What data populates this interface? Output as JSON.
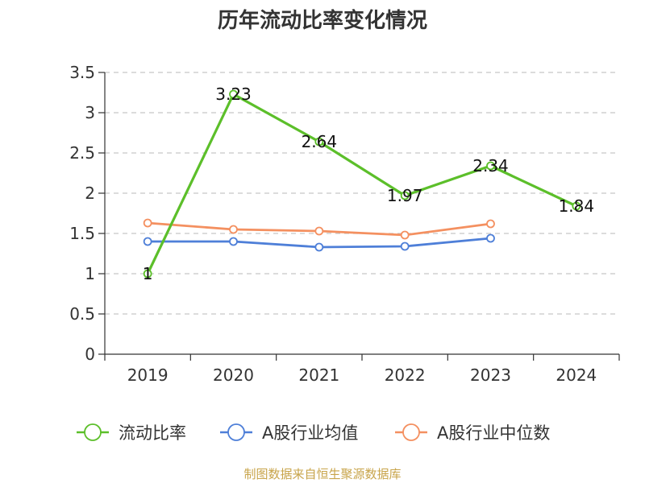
{
  "chart_data": {
    "type": "line",
    "title": "历年流动比率变化情况",
    "categories": [
      "2019",
      "2020",
      "2021",
      "2022",
      "2023",
      "2024"
    ],
    "ylim": [
      0,
      3.5
    ],
    "yticks": [
      "0",
      "0.5",
      "1",
      "1.5",
      "2",
      "2.5",
      "3",
      "3.5"
    ],
    "grid": true,
    "legend_position": "bottom",
    "series": [
      {
        "name": "流动比率",
        "color": "#5cbf2a",
        "values": [
          1,
          3.23,
          2.64,
          1.97,
          2.34,
          1.84
        ],
        "labels": [
          "1",
          "3.23",
          "2.64",
          "1.97",
          "2.34",
          "1.84"
        ],
        "show_labels": true
      },
      {
        "name": "A股行业均值",
        "color": "#4e7fd8",
        "values": [
          1.4,
          1.4,
          1.33,
          1.34,
          1.44,
          null
        ],
        "show_labels": false
      },
      {
        "name": "A股行业中位数",
        "color": "#f49060",
        "values": [
          1.63,
          1.55,
          1.53,
          1.48,
          1.62,
          null
        ],
        "show_labels": false
      }
    ]
  },
  "source": "制图数据来自恒生聚源数据库"
}
